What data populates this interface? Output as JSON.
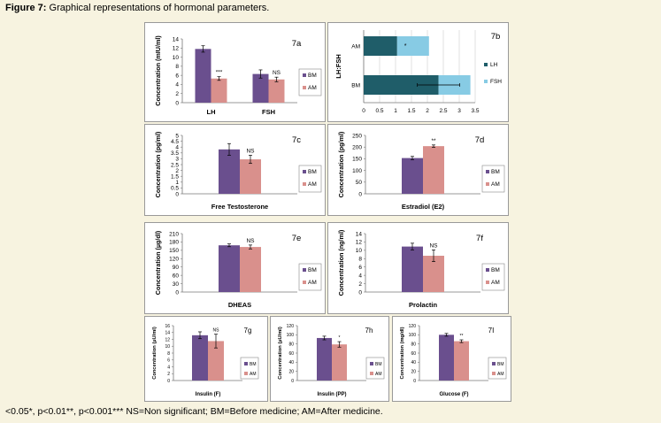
{
  "figure": {
    "label": "Figure 7:",
    "caption": "Graphical representations of hormonal parameters.",
    "footer": "<0.05*, p<0.01**, p<0.001***  NS=Non significant; BM=Before medicine; AM=After medicine."
  },
  "colors": {
    "bm": "#6a4f8e",
    "am": "#d9908c",
    "lh": "#1f5d69",
    "fsh": "#87cbe4",
    "error": "#000000"
  },
  "chart_data": [
    {
      "id": "7a",
      "type": "bar",
      "panel_label": "7a",
      "ylabel": "Concentration (mIU/ml)",
      "ylim": [
        0,
        14
      ],
      "yticks": [
        0,
        2,
        4,
        6,
        8,
        10,
        12,
        14
      ],
      "categories": [
        "LH",
        "FSH"
      ],
      "series": [
        {
          "name": "BM",
          "values": [
            11.8,
            6.3
          ],
          "errors": [
            0.7,
            0.9
          ]
        },
        {
          "name": "AM",
          "values": [
            5.3,
            5.1
          ],
          "errors": [
            0.4,
            0.5
          ]
        }
      ],
      "annotations": [
        "***",
        "NS"
      ],
      "legend_position": "right"
    },
    {
      "id": "7b",
      "type": "bar",
      "orientation": "horizontal",
      "stacked": true,
      "panel_label": "7b",
      "ylabel": "LH:FSH",
      "xlim": [
        0,
        3.5
      ],
      "xticks": [
        0,
        0.5,
        1,
        1.5,
        2,
        2.5,
        3,
        3.5
      ],
      "categories": [
        "AM",
        "BM"
      ],
      "series": [
        {
          "name": "LH",
          "values": [
            1.05,
            2.35
          ]
        },
        {
          "name": "FSH",
          "values": [
            1.0,
            1.0
          ]
        }
      ],
      "annotations": [
        "*",
        ""
      ],
      "legend_position": "right"
    },
    {
      "id": "7c",
      "type": "bar",
      "panel_label": "7c",
      "ylabel": "Concentration (pg/ml)",
      "ylim": [
        0,
        5
      ],
      "yticks": [
        0,
        0.5,
        1,
        1.5,
        2,
        2.5,
        3,
        3.5,
        4,
        4.5,
        5
      ],
      "categories": [
        "Free Testosterone"
      ],
      "series": [
        {
          "name": "BM",
          "values": [
            3.8
          ],
          "errors": [
            0.5
          ]
        },
        {
          "name": "AM",
          "values": [
            2.95
          ],
          "errors": [
            0.35
          ]
        }
      ],
      "annotations": [
        "NS"
      ],
      "legend_position": "right"
    },
    {
      "id": "7d",
      "type": "bar",
      "panel_label": "7d",
      "ylabel": "Concentration (pg/ml)",
      "ylim": [
        0,
        250
      ],
      "yticks": [
        0,
        50,
        100,
        150,
        200,
        250
      ],
      "categories": [
        "Estradiol (E2)"
      ],
      "series": [
        {
          "name": "BM",
          "values": [
            153
          ],
          "errors": [
            7
          ]
        },
        {
          "name": "AM",
          "values": [
            204
          ],
          "errors": [
            5
          ]
        }
      ],
      "annotations": [
        "**"
      ],
      "legend_position": "right"
    },
    {
      "id": "7e",
      "type": "bar",
      "panel_label": "7e",
      "ylabel": "Concentration (µg/dl)",
      "ylim": [
        0,
        210
      ],
      "yticks": [
        0,
        30,
        60,
        90,
        120,
        150,
        180,
        210
      ],
      "categories": [
        "DHEAS"
      ],
      "series": [
        {
          "name": "BM",
          "values": [
            168
          ],
          "errors": [
            5
          ]
        },
        {
          "name": "AM",
          "values": [
            162
          ],
          "errors": [
            7
          ]
        }
      ],
      "annotations": [
        "NS"
      ],
      "legend_position": "right"
    },
    {
      "id": "7f",
      "type": "bar",
      "panel_label": "7f",
      "ylabel": "Concentration (ng/ml)",
      "ylim": [
        0,
        14
      ],
      "yticks": [
        0,
        2,
        4,
        6,
        8,
        10,
        12,
        14
      ],
      "categories": [
        "Prolactin"
      ],
      "series": [
        {
          "name": "BM",
          "values": [
            10.9
          ],
          "errors": [
            0.8
          ]
        },
        {
          "name": "AM",
          "values": [
            8.7
          ],
          "errors": [
            1.4
          ]
        }
      ],
      "annotations": [
        "NS"
      ],
      "legend_position": "right"
    },
    {
      "id": "7g",
      "type": "bar",
      "panel_label": "7g",
      "ylabel": "Concentration (µU/ml)",
      "ylim": [
        0,
        16
      ],
      "yticks": [
        0,
        2,
        4,
        6,
        8,
        10,
        12,
        14,
        16
      ],
      "categories": [
        "Insulin (F)"
      ],
      "series": [
        {
          "name": "BM",
          "values": [
            13.2
          ],
          "errors": [
            1.0
          ]
        },
        {
          "name": "AM",
          "values": [
            11.5
          ],
          "errors": [
            2.0
          ]
        }
      ],
      "annotations": [
        "NS"
      ],
      "legend_position": "right"
    },
    {
      "id": "7h",
      "type": "bar",
      "panel_label": "7h",
      "ylabel": "Concentration (µU/ml)",
      "ylim": [
        0,
        120
      ],
      "yticks": [
        0,
        20,
        40,
        60,
        80,
        100,
        120
      ],
      "categories": [
        "Insulin (PP)"
      ],
      "series": [
        {
          "name": "BM",
          "values": [
            93
          ],
          "errors": [
            4
          ]
        },
        {
          "name": "AM",
          "values": [
            79
          ],
          "errors": [
            6
          ]
        }
      ],
      "annotations": [
        "*"
      ],
      "legend_position": "right"
    },
    {
      "id": "7i",
      "type": "bar",
      "panel_label": "7I",
      "ylabel": "Concentration (mg/dl)",
      "ylim": [
        0,
        120
      ],
      "yticks": [
        0,
        20,
        40,
        60,
        80,
        100,
        120
      ],
      "categories": [
        "Glucose (F)"
      ],
      "series": [
        {
          "name": "BM",
          "values": [
            100
          ],
          "errors": [
            3
          ]
        },
        {
          "name": "AM",
          "values": [
            86
          ],
          "errors": [
            3
          ]
        }
      ],
      "annotations": [
        "**"
      ],
      "legend_position": "right"
    }
  ]
}
